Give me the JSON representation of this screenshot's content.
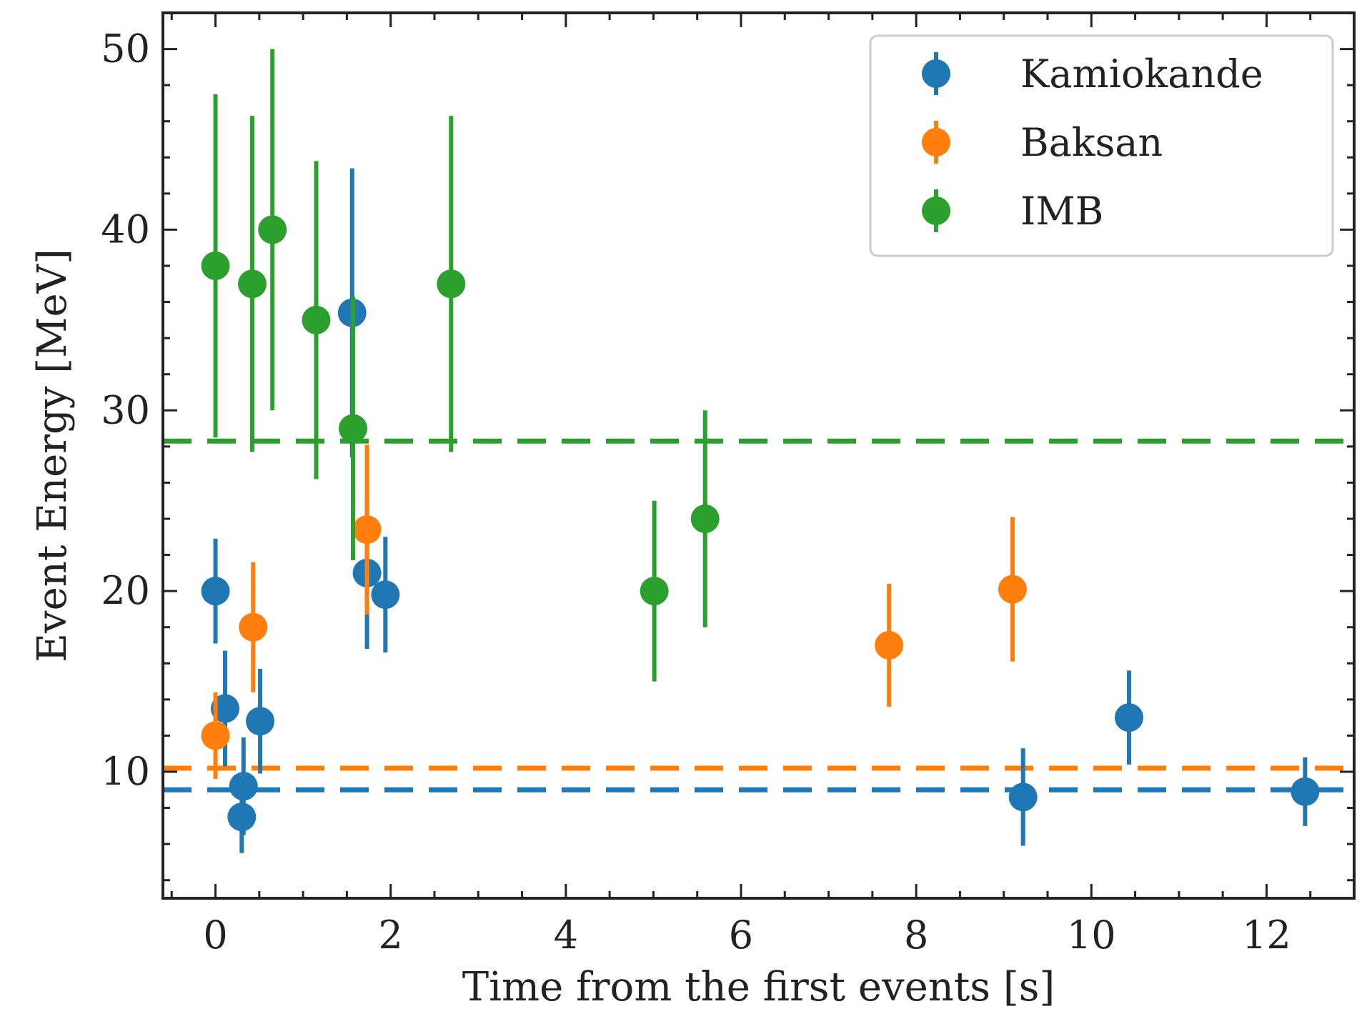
{
  "chart_data": {
    "type": "scatter",
    "xlabel": "Time from the first events [s]",
    "ylabel": "Event Energy [MeV]",
    "xlim": [
      -0.6,
      13.0
    ],
    "ylim": [
      3.0,
      52.0
    ],
    "xticks": [
      0,
      2,
      4,
      6,
      8,
      10,
      12
    ],
    "yticks": [
      10,
      20,
      30,
      40,
      50
    ],
    "grid": false,
    "legend_position": "top-right",
    "series": [
      {
        "name": "Kamiokande",
        "color": "#1f77b4",
        "points": [
          {
            "x": 0.0,
            "y": 20.0,
            "err": 2.9
          },
          {
            "x": 0.11,
            "y": 13.5,
            "err": 3.2
          },
          {
            "x": 0.3,
            "y": 7.5,
            "err": 2.0
          },
          {
            "x": 0.32,
            "y": 9.2,
            "err": 2.7
          },
          {
            "x": 0.51,
            "y": 12.8,
            "err": 2.9
          },
          {
            "x": 1.56,
            "y": 35.4,
            "err": 8.0
          },
          {
            "x": 1.73,
            "y": 21.0,
            "err": 4.2
          },
          {
            "x": 1.94,
            "y": 19.8,
            "err": 3.2
          },
          {
            "x": 9.22,
            "y": 8.6,
            "err": 2.7
          },
          {
            "x": 10.43,
            "y": 13.0,
            "err": 2.6
          },
          {
            "x": 12.44,
            "y": 8.9,
            "err": 1.9
          }
        ]
      },
      {
        "name": "Baksan",
        "color": "#ff7f0e",
        "points": [
          {
            "x": 0.0,
            "y": 12.0,
            "err": 2.4
          },
          {
            "x": 0.43,
            "y": 18.0,
            "err": 3.6
          },
          {
            "x": 1.73,
            "y": 23.4,
            "err": 4.7
          },
          {
            "x": 7.69,
            "y": 17.0,
            "err": 3.4
          },
          {
            "x": 9.1,
            "y": 20.1,
            "err": 4.0
          }
        ]
      },
      {
        "name": "IMB",
        "color": "#2ca02c",
        "points": [
          {
            "x": 0.0,
            "y": 38.0,
            "err": 9.5
          },
          {
            "x": 0.42,
            "y": 37.0,
            "err": 9.3
          },
          {
            "x": 0.65,
            "y": 40.0,
            "err": 10.0
          },
          {
            "x": 1.15,
            "y": 35.0,
            "err": 8.8
          },
          {
            "x": 1.57,
            "y": 29.0,
            "err": 7.3
          },
          {
            "x": 2.69,
            "y": 37.0,
            "err": 9.3
          },
          {
            "x": 5.01,
            "y": 20.0,
            "err": 5.0
          },
          {
            "x": 5.59,
            "y": 24.0,
            "err": 6.0
          }
        ]
      }
    ],
    "reference_lines": [
      {
        "series": "IMB",
        "y": 28.3,
        "color": "#2ca02c",
        "style": "dashed"
      },
      {
        "series": "Baksan",
        "y": 10.2,
        "color": "#ff7f0e",
        "style": "dashed"
      },
      {
        "series": "Kamiokande",
        "y": 9.0,
        "color": "#1f77b4",
        "style": "dashed"
      }
    ]
  }
}
